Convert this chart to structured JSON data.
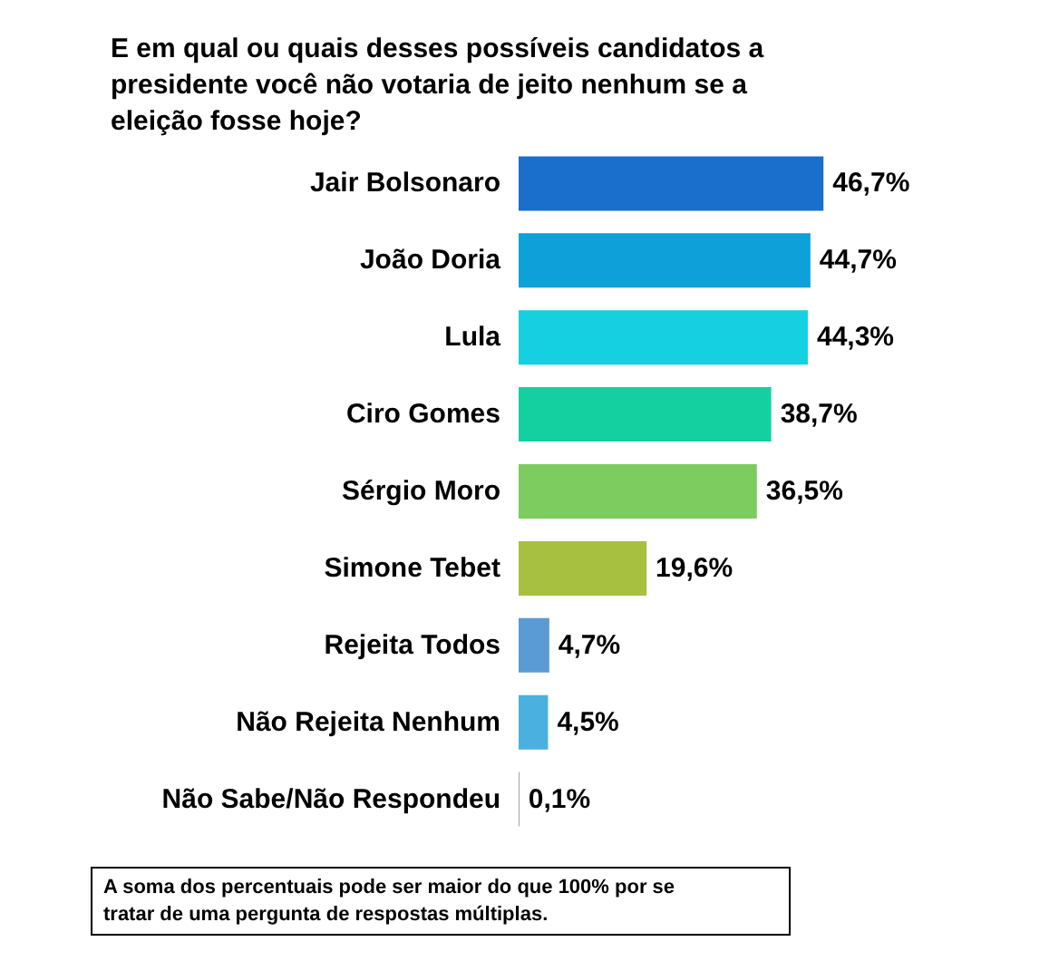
{
  "chart_data": {
    "type": "bar",
    "orientation": "horizontal",
    "title": "E em qual ou quais desses possíveis candidatos a presidente você não votaria de jeito nenhum se a eleição fosse hoje?",
    "categories": [
      "Jair Bolsonaro",
      "João Doria",
      "Lula",
      "Ciro Gomes",
      "Sérgio Moro",
      "Simone Tebet",
      "Rejeita Todos",
      "Não Rejeita Nenhum",
      "Não Sabe/Não Respondeu"
    ],
    "values": [
      46.7,
      44.7,
      44.3,
      38.7,
      36.5,
      19.6,
      4.7,
      4.5,
      0.1
    ],
    "colors": [
      "#1a6ecc",
      "#0ea0d8",
      "#14d0e0",
      "#14d0a0",
      "#7ccc60",
      "#a8c040",
      "#5b9bd5",
      "#4ab0e0",
      "#808080"
    ],
    "value_labels": [
      "46,7%",
      "44,7%",
      "44,3%",
      "38,7%",
      "36,5%",
      "19,6%",
      "4,7%",
      "4,5%",
      "0,1%"
    ],
    "annotations": [
      "A soma dos percentuais pode ser maior do que 100% por se tratar de uma pergunta de respostas múltiplas."
    ]
  }
}
